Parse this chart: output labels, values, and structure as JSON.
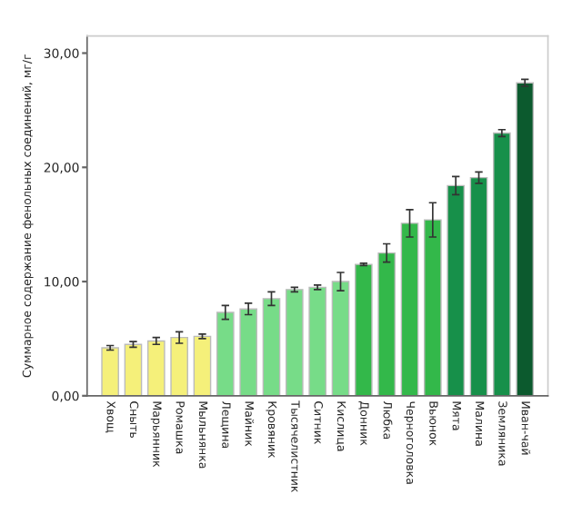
{
  "chart_data": {
    "type": "bar",
    "ylabel": "Суммарное содержание фенольных соединений, мг/г",
    "categories": [
      "Хвощ",
      "Сныть",
      "Марьянник",
      "Ромашка",
      "Мыльнянка",
      "Лещина",
      "Майник",
      "Кровяник",
      "Тысячелистник",
      "Ситник",
      "Кислица",
      "Донник",
      "Любка",
      "Черноголовка",
      "Вьюнок",
      "Мята",
      "Малина",
      "Земляника",
      "Иван-чай"
    ],
    "values": [
      4.2,
      4.5,
      4.8,
      5.1,
      5.2,
      7.3,
      7.6,
      8.5,
      9.3,
      9.5,
      10.0,
      11.5,
      12.5,
      15.1,
      15.4,
      18.4,
      19.1,
      23.0,
      27.4
    ],
    "errors": [
      0.2,
      0.25,
      0.3,
      0.5,
      0.2,
      0.6,
      0.5,
      0.6,
      0.2,
      0.2,
      0.8,
      0.1,
      0.8,
      1.2,
      1.5,
      0.8,
      0.5,
      0.3,
      0.3
    ],
    "colors": [
      "#f5f07a",
      "#f5f07a",
      "#f5f07a",
      "#f5f07a",
      "#f5f07a",
      "#77dc88",
      "#77dc88",
      "#77dc88",
      "#77dc88",
      "#77dc88",
      "#77dc88",
      "#33b84a",
      "#33b84a",
      "#33b84a",
      "#33b84a",
      "#17904a",
      "#17904a",
      "#17904a",
      "#0c5a2e"
    ],
    "ylim": [
      0,
      31.5
    ],
    "yticks": [
      {
        "value": 0,
        "label": "0,00"
      },
      {
        "value": 10,
        "label": "10,00"
      },
      {
        "value": 20,
        "label": "20,00"
      },
      {
        "value": 30,
        "label": "30,00"
      }
    ],
    "grid": false,
    "legend": false
  }
}
